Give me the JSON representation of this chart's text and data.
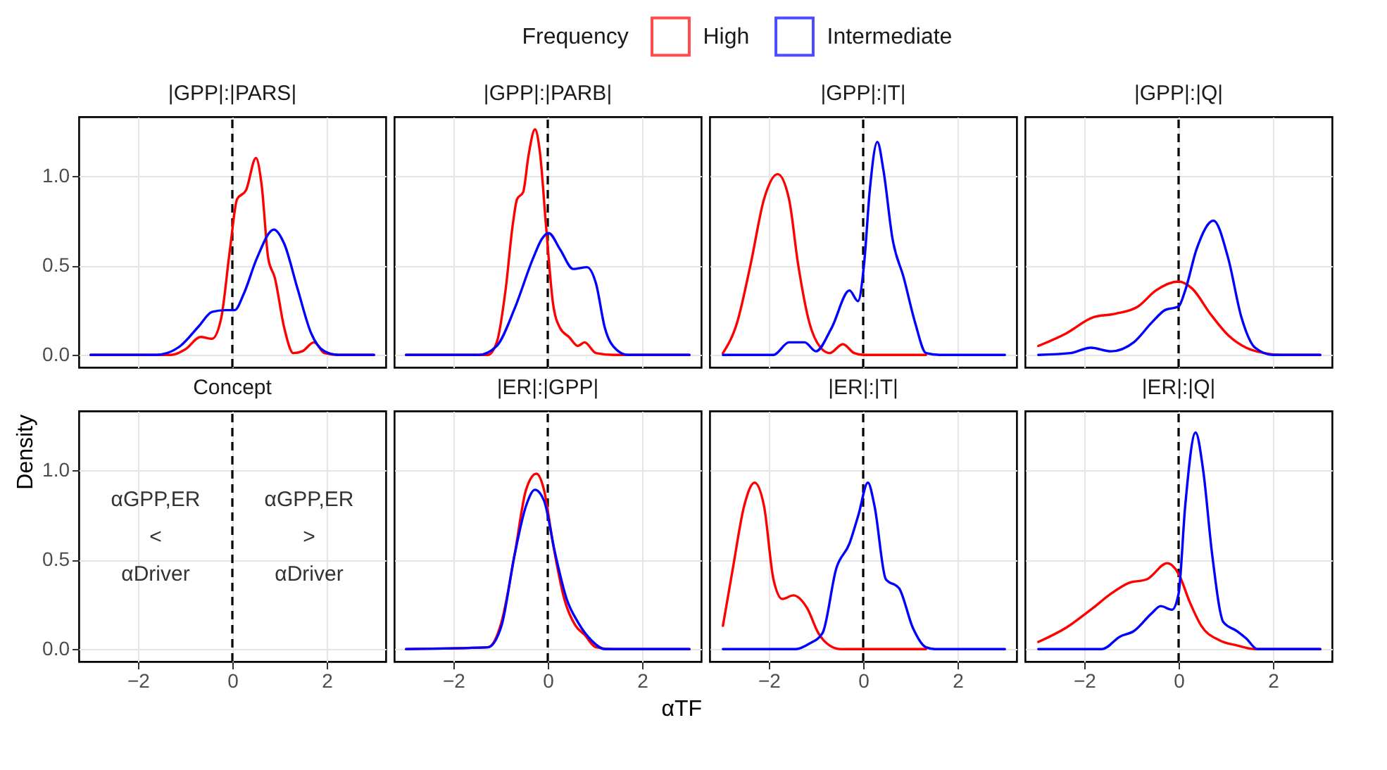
{
  "chart_data": [
    {
      "type": "line",
      "title": "|GPP|:|PARS|",
      "legend": "top",
      "legend_title": "Frequency",
      "grid": true,
      "tick_labels": "y",
      "xlim": [
        -3.25,
        3.25
      ],
      "ylim": [
        -0.07,
        1.33
      ],
      "xticks": [
        -2,
        0,
        2
      ],
      "yticks": [
        {
          "value": 0,
          "label": "0.0"
        },
        {
          "value": 0.5,
          "label": "0.5"
        },
        {
          "value": 1,
          "label": "1.0"
        }
      ],
      "ref_lines": [
        {
          "axis": "x",
          "value": 0,
          "line_style": "dashed",
          "color": "#000000"
        }
      ],
      "series": [
        {
          "name": "High",
          "color": "#ff0000",
          "x": [
            -3.0,
            -1.3,
            -1.0,
            -0.67,
            -0.43,
            -0.24,
            -0.05,
            0.1,
            0.29,
            0.5,
            0.62,
            0.76,
            0.9,
            1.1,
            1.29,
            1.48,
            1.73,
            1.95,
            2.24,
            3.0
          ],
          "values": [
            0,
            0,
            0.03,
            0.1,
            0.09,
            0.2,
            0.59,
            0.87,
            0.92,
            1.1,
            0.95,
            0.54,
            0.43,
            0.15,
            0.01,
            0.02,
            0.07,
            0.01,
            0,
            0
          ]
        },
        {
          "name": "Intermediate",
          "color": "#0000ff",
          "x": [
            -3.0,
            -1.6,
            -1.38,
            -1.1,
            -0.71,
            -0.43,
            -0.14,
            0.05,
            0.24,
            0.52,
            0.88,
            1.1,
            1.38,
            1.67,
            1.95,
            2.24,
            3.0
          ],
          "values": [
            0,
            0,
            0.01,
            0.05,
            0.16,
            0.24,
            0.25,
            0.25,
            0.34,
            0.54,
            0.7,
            0.62,
            0.37,
            0.12,
            0.02,
            0,
            0
          ]
        }
      ]
    },
    {
      "type": "line",
      "title": "|GPP|:|PARB|",
      "grid": true,
      "tick_labels": false,
      "xlim": [
        -3.25,
        3.25
      ],
      "ylim": [
        -0.07,
        1.33
      ],
      "xticks": [
        -2,
        0,
        2
      ],
      "yticks": [
        0,
        0.5,
        1
      ],
      "ref_lines": [
        {
          "axis": "x",
          "value": 0,
          "line_style": "dashed",
          "color": "#000000"
        }
      ],
      "series": [
        {
          "color": "#ff0000",
          "x": [
            -3.0,
            -1.27,
            -1.08,
            -0.89,
            -0.74,
            -0.65,
            -0.52,
            -0.41,
            -0.27,
            -0.17,
            -0.03,
            0.11,
            0.26,
            0.45,
            0.64,
            0.78,
            1.02,
            1.4,
            3.0
          ],
          "values": [
            0,
            0,
            0.07,
            0.37,
            0.73,
            0.87,
            0.91,
            1.11,
            1.26,
            1.14,
            0.7,
            0.29,
            0.15,
            0.1,
            0.05,
            0.07,
            0.01,
            0,
            0
          ]
        },
        {
          "color": "#0000ff",
          "x": [
            -3.0,
            -1.46,
            -1.08,
            -0.7,
            -0.31,
            -0.12,
            0.02,
            0.26,
            0.54,
            0.83,
            1.02,
            1.21,
            1.45,
            1.69,
            3.0
          ],
          "values": [
            0,
            0,
            0.05,
            0.26,
            0.54,
            0.65,
            0.68,
            0.59,
            0.48,
            0.49,
            0.4,
            0.15,
            0.03,
            0,
            0
          ]
        }
      ]
    },
    {
      "type": "line",
      "title": "|GPP|:|T|",
      "grid": true,
      "tick_labels": false,
      "xlim": [
        -3.25,
        3.25
      ],
      "ylim": [
        -0.07,
        1.33
      ],
      "xticks": [
        -2,
        0,
        2
      ],
      "yticks": [
        0,
        0.5,
        1
      ],
      "ref_lines": [
        {
          "axis": "x",
          "value": 0,
          "line_style": "dashed",
          "color": "#000000"
        }
      ],
      "series": [
        {
          "color": "#ff0000",
          "x": [
            -2.97,
            -2.67,
            -2.38,
            -2.1,
            -1.81,
            -1.57,
            -1.38,
            -1.14,
            -0.9,
            -0.71,
            -0.43,
            -0.19,
            0,
            1.33
          ],
          "values": [
            0.01,
            0.18,
            0.51,
            0.87,
            1.01,
            0.87,
            0.51,
            0.18,
            0.04,
            0.01,
            0.06,
            0.01,
            0,
            0
          ]
        },
        {
          "color": "#0000ff",
          "x": [
            -2.97,
            -1.9,
            -1.57,
            -1.24,
            -1.0,
            -0.67,
            -0.29,
            -0.11,
            0.02,
            0.14,
            0.3,
            0.43,
            0.62,
            0.86,
            1.1,
            1.33,
            1.62,
            3.0
          ],
          "values": [
            0,
            0,
            0.07,
            0.07,
            0.02,
            0.15,
            0.36,
            0.3,
            0.51,
            0.92,
            1.19,
            1.03,
            0.65,
            0.43,
            0.18,
            0.01,
            0,
            0
          ]
        }
      ]
    },
    {
      "type": "line",
      "title": "|GPP|:|Q|",
      "grid": true,
      "tick_labels": false,
      "xlim": [
        -3.25,
        3.25
      ],
      "ylim": [
        -0.07,
        1.33
      ],
      "xticks": [
        -2,
        0,
        2
      ],
      "yticks": [
        0,
        0.5,
        1
      ],
      "ref_lines": [
        {
          "axis": "x",
          "value": 0,
          "line_style": "dashed",
          "color": "#000000"
        }
      ],
      "series": [
        {
          "color": "#ff0000",
          "x": [
            -2.97,
            -2.38,
            -1.81,
            -1.33,
            -0.86,
            -0.48,
            0,
            0.29,
            0.67,
            1.05,
            1.43,
            1.81,
            2.19,
            3.0
          ],
          "values": [
            0.05,
            0.12,
            0.21,
            0.23,
            0.27,
            0.36,
            0.41,
            0.37,
            0.23,
            0.11,
            0.04,
            0.01,
            0,
            0
          ]
        },
        {
          "color": "#0000ff",
          "x": [
            -2.97,
            -2.29,
            -1.86,
            -1.43,
            -0.95,
            -0.57,
            -0.29,
            0,
            0.14,
            0.38,
            0.74,
            1.05,
            1.33,
            1.62,
            2.0,
            3.0
          ],
          "values": [
            0,
            0.01,
            0.04,
            0.02,
            0.07,
            0.18,
            0.25,
            0.27,
            0.36,
            0.59,
            0.75,
            0.54,
            0.21,
            0.04,
            0,
            0
          ]
        }
      ]
    },
    {
      "type": "line",
      "title": "Concept",
      "ylabel": "Density",
      "grid": true,
      "xlim": [
        -3.25,
        3.25
      ],
      "ylim": [
        -0.07,
        1.33
      ],
      "xticks": [
        -2,
        0,
        2
      ],
      "yticks": [
        {
          "value": 0,
          "label": "0.0"
        },
        {
          "value": 0.5,
          "label": "0.5"
        },
        {
          "value": 1,
          "label": "1.0"
        }
      ],
      "ref_lines": [
        {
          "axis": "x",
          "value": 0,
          "line_style": "dashed",
          "color": "#000000"
        }
      ],
      "annotations": [
        "αGPP,ER",
        "<",
        "αDriver",
        "αGPP,ER",
        ">",
        "αDriver"
      ]
    },
    {
      "type": "line",
      "title": "|ER|:|GPP|",
      "xlabel": "αTF",
      "grid": true,
      "tick_labels": "x",
      "xlim": [
        -3.25,
        3.25
      ],
      "ylim": [
        -0.07,
        1.33
      ],
      "xticks": [
        -2,
        0,
        2
      ],
      "yticks": [
        0,
        0.5,
        1
      ],
      "ref_lines": [
        {
          "axis": "x",
          "value": 0,
          "line_style": "dashed",
          "color": "#000000"
        }
      ],
      "series": [
        {
          "color": "#ff0000",
          "x": [
            -3.0,
            -1.27,
            -0.98,
            -0.7,
            -0.46,
            -0.24,
            -0.08,
            0.11,
            0.35,
            0.59,
            0.78,
            1.02,
            1.4,
            3.0
          ],
          "values": [
            0,
            0.01,
            0.15,
            0.53,
            0.89,
            0.98,
            0.89,
            0.59,
            0.28,
            0.13,
            0.08,
            0.01,
            0,
            0
          ]
        },
        {
          "color": "#0000ff",
          "x": [
            -3.0,
            -1.27,
            -0.98,
            -0.7,
            -0.46,
            -0.27,
            -0.08,
            0.16,
            0.4,
            0.64,
            0.92,
            1.21,
            3.0
          ],
          "values": [
            0,
            0.01,
            0.13,
            0.53,
            0.8,
            0.89,
            0.83,
            0.53,
            0.28,
            0.15,
            0.05,
            0,
            0
          ]
        }
      ]
    },
    {
      "type": "line",
      "title": "|ER|:|T|",
      "grid": true,
      "tick_labels": "x",
      "xlim": [
        -3.25,
        3.25
      ],
      "ylim": [
        -0.07,
        1.33
      ],
      "xticks": [
        -2,
        0,
        2
      ],
      "yticks": [
        0,
        0.5,
        1
      ],
      "ref_lines": [
        {
          "axis": "x",
          "value": 0,
          "line_style": "dashed",
          "color": "#000000"
        }
      ],
      "series": [
        {
          "color": "#ff0000",
          "x": [
            -2.97,
            -2.76,
            -2.52,
            -2.3,
            -2.1,
            -1.9,
            -1.71,
            -1.48,
            -1.19,
            -0.95,
            -0.71,
            -0.48,
            1.33
          ],
          "values": [
            0.13,
            0.45,
            0.8,
            0.93,
            0.8,
            0.39,
            0.28,
            0.3,
            0.23,
            0.09,
            0.02,
            0,
            0
          ]
        },
        {
          "color": "#0000ff",
          "x": [
            -2.97,
            -1.43,
            -1.14,
            -0.86,
            -0.57,
            -0.29,
            -0.1,
            0.1,
            0.24,
            0.48,
            0.76,
            1.05,
            1.33,
            1.52,
            3.0
          ],
          "values": [
            0,
            0,
            0.03,
            0.09,
            0.45,
            0.59,
            0.75,
            0.93,
            0.8,
            0.39,
            0.34,
            0.12,
            0.01,
            0,
            0
          ]
        }
      ]
    },
    {
      "type": "line",
      "title": "|ER|:|Q|",
      "grid": true,
      "tick_labels": "x",
      "xlim": [
        -3.25,
        3.25
      ],
      "ylim": [
        -0.07,
        1.33
      ],
      "xticks": [
        -2,
        0,
        2
      ],
      "yticks": [
        0,
        0.5,
        1
      ],
      "ref_lines": [
        {
          "axis": "x",
          "value": 0,
          "line_style": "dashed",
          "color": "#000000"
        }
      ],
      "series": [
        {
          "color": "#ff0000",
          "x": [
            -2.97,
            -2.38,
            -1.81,
            -1.43,
            -1.05,
            -0.67,
            -0.24,
            0,
            0.24,
            0.48,
            0.86,
            1.24,
            1.62,
            3.0
          ],
          "values": [
            0.04,
            0.12,
            0.23,
            0.31,
            0.37,
            0.39,
            0.48,
            0.42,
            0.26,
            0.13,
            0.05,
            0.02,
            0,
            0
          ]
        },
        {
          "color": "#0000ff",
          "x": [
            -2.97,
            -1.62,
            -1.24,
            -0.95,
            -0.57,
            -0.38,
            -0.14,
            0,
            0.14,
            0.36,
            0.52,
            0.71,
            0.95,
            1.24,
            1.43,
            1.67,
            3.0
          ],
          "values": [
            0,
            0,
            0.07,
            0.1,
            0.2,
            0.24,
            0.22,
            0.31,
            0.8,
            1.21,
            1.0,
            0.53,
            0.15,
            0.1,
            0.06,
            0,
            0
          ]
        }
      ]
    }
  ]
}
